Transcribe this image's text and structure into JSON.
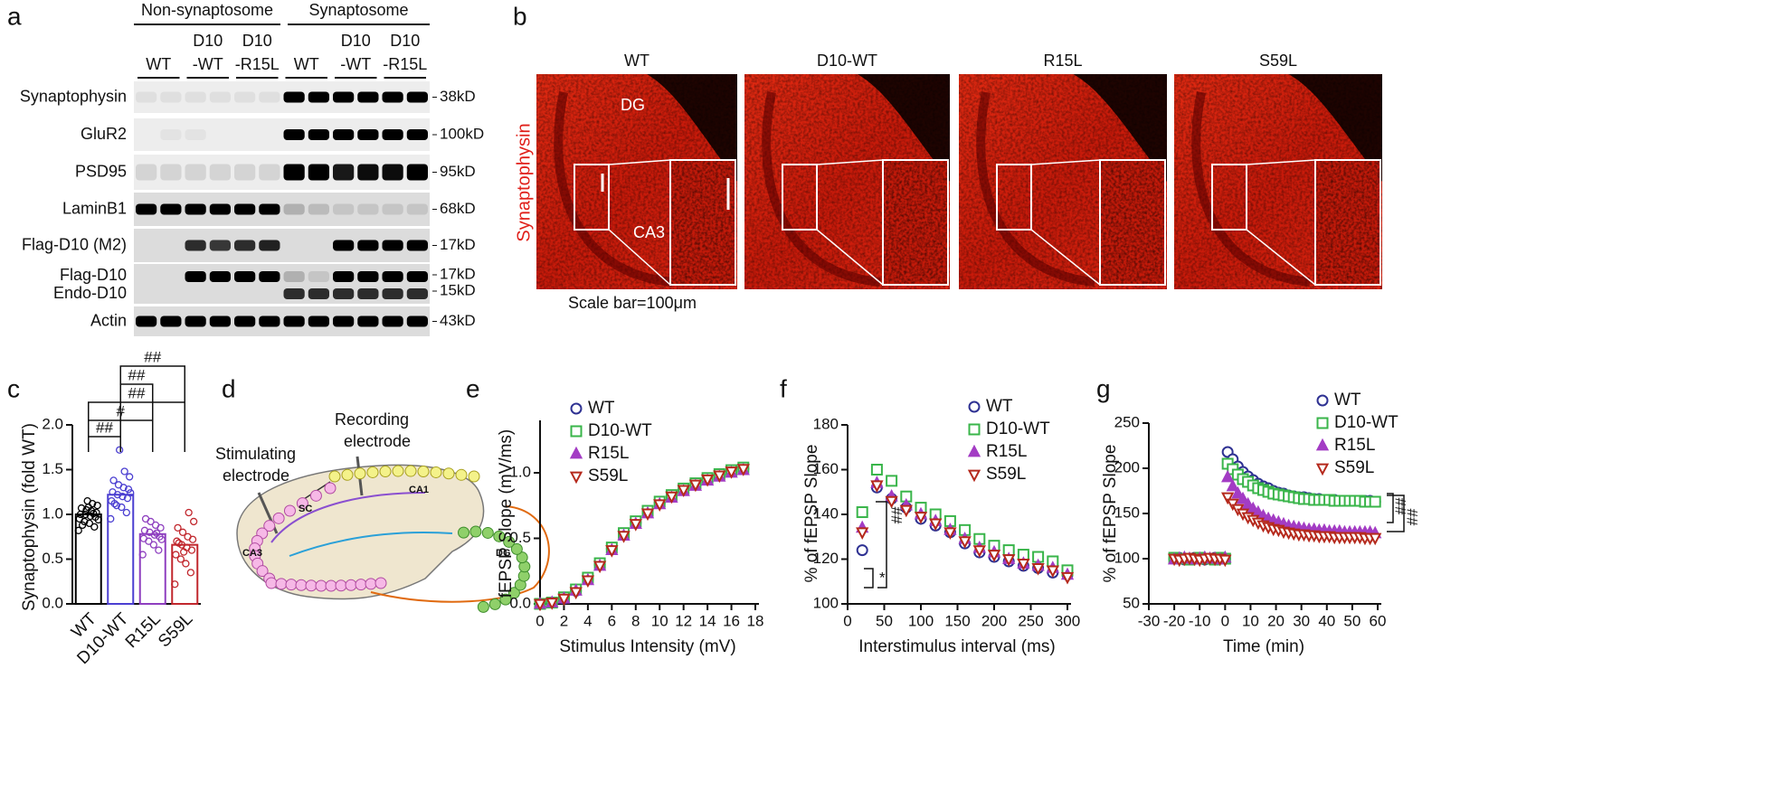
{
  "panel_labels": [
    "a",
    "b",
    "c",
    "d",
    "e",
    "f",
    "g"
  ],
  "blot": {
    "groups": [
      "Non-synaptosome",
      "Synaptosome"
    ],
    "lanes": [
      [
        "WT"
      ],
      [
        "D10",
        "-WT"
      ],
      [
        "D10",
        "-R15L"
      ],
      [
        "WT"
      ],
      [
        "D10",
        "-WT"
      ],
      [
        "D10",
        "-R15L"
      ]
    ],
    "rows": [
      {
        "labels": [
          "Synaptophysin"
        ],
        "sizes": [
          "38kD"
        ]
      },
      {
        "labels": [
          "GluR2"
        ],
        "sizes": [
          "100kD"
        ]
      },
      {
        "labels": [
          "PSD95"
        ],
        "sizes": [
          "95kD"
        ]
      },
      {
        "labels": [
          "LaminB1"
        ],
        "sizes": [
          "68kD"
        ]
      },
      {
        "labels": [
          "Flag-D10 (M2)"
        ],
        "sizes": [
          "17kD"
        ]
      },
      {
        "labels": [
          "Flag-D10",
          "Endo-D10"
        ],
        "sizes": [
          "17kD",
          "15kD"
        ]
      },
      {
        "labels": [
          "Actin"
        ],
        "sizes": [
          "43kD"
        ]
      }
    ]
  },
  "microscopy": {
    "stain": "Synaptophysin",
    "images": [
      "WT",
      "D10-WT",
      "R15L",
      "S59L"
    ],
    "regions": [
      "DG",
      "CA3"
    ],
    "scale": "Scale bar=100μm"
  },
  "diagram": {
    "stimulating": [
      "Stimulating",
      "electrode"
    ],
    "recording": [
      "Recording",
      "electrode"
    ],
    "regions": [
      "CA3",
      "SC",
      "CA1",
      "DG"
    ]
  },
  "chart_data": [
    {
      "type": "bar",
      "ylabel": "Synaptophysin (fold WT)",
      "categories": [
        "WT",
        "D10-WT",
        "R15L",
        "S59L"
      ],
      "values": [
        1.0,
        1.22,
        0.78,
        0.66
      ],
      "colors": [
        "#000000",
        "#4b3fd1",
        "#8e3fbf",
        "#c1272d"
      ],
      "points": [
        [
          0.82,
          0.86,
          0.9,
          0.92,
          0.95,
          0.97,
          0.98,
          1.0,
          1.0,
          1.02,
          1.04,
          1.05,
          1.07,
          1.1,
          1.12,
          1.15,
          0.88,
          0.94,
          1.01,
          1.08
        ],
        [
          0.95,
          1.02,
          1.08,
          1.1,
          1.15,
          1.18,
          1.2,
          1.22,
          1.25,
          1.28,
          1.3,
          1.33,
          1.38,
          1.42,
          1.48,
          1.72,
          1.12,
          1.24
        ],
        [
          0.55,
          0.6,
          0.66,
          0.7,
          0.73,
          0.75,
          0.77,
          0.8,
          0.82,
          0.85,
          0.88,
          0.92,
          0.95,
          0.72,
          0.79
        ],
        [
          0.22,
          0.35,
          0.45,
          0.5,
          0.55,
          0.6,
          0.63,
          0.66,
          0.7,
          0.72,
          0.75,
          0.8,
          0.85,
          0.92,
          1.02,
          0.58,
          0.68
        ]
      ],
      "ylim": [
        0,
        2
      ],
      "yticks": [
        {
          "value": 0,
          "label": "0.0"
        },
        {
          "value": 0.5,
          "label": "0.5"
        },
        {
          "value": 1,
          "label": "1.0"
        },
        {
          "value": 1.5,
          "label": "1.5"
        },
        {
          "value": 2,
          "label": "2.0"
        }
      ],
      "annotations": [
        "##",
        "##",
        "##",
        "#",
        "##"
      ]
    },
    {
      "type": "scatter",
      "xlabel": "Stimulus Intensity (mV)",
      "ylabel": "fEPSP Slope (mV/ms)",
      "x": [
        0,
        1,
        2,
        3,
        4,
        5,
        6,
        7,
        8,
        9,
        10,
        11,
        12,
        13,
        14,
        15,
        16,
        17
      ],
      "series": [
        {
          "name": "WT",
          "color": "#2e3192",
          "marker": "circle",
          "values": [
            0,
            0.01,
            0.04,
            0.1,
            0.19,
            0.3,
            0.42,
            0.53,
            0.62,
            0.7,
            0.77,
            0.82,
            0.87,
            0.91,
            0.95,
            0.98,
            1.01,
            1.03
          ]
        },
        {
          "name": "D10-WT",
          "color": "#39b54a",
          "marker": "square",
          "values": [
            0,
            0.01,
            0.05,
            0.11,
            0.2,
            0.31,
            0.43,
            0.54,
            0.63,
            0.71,
            0.78,
            0.83,
            0.88,
            0.92,
            0.96,
            0.99,
            1.02,
            1.04
          ]
        },
        {
          "name": "R15L",
          "color": "#a33cc4",
          "marker": "triangle-filled",
          "values": [
            0,
            0.01,
            0.04,
            0.1,
            0.18,
            0.29,
            0.41,
            0.52,
            0.61,
            0.69,
            0.76,
            0.81,
            0.86,
            0.9,
            0.94,
            0.97,
            1.0,
            1.02
          ]
        },
        {
          "name": "S59L",
          "color": "#b5291c",
          "marker": "triangle-down",
          "values": [
            0,
            0.01,
            0.04,
            0.09,
            0.18,
            0.29,
            0.41,
            0.52,
            0.61,
            0.69,
            0.76,
            0.82,
            0.87,
            0.91,
            0.95,
            0.98,
            1.01,
            1.03
          ]
        }
      ],
      "xlim": [
        0,
        18
      ],
      "ylim": [
        0,
        1.4
      ],
      "xticks": [
        0,
        2,
        4,
        6,
        8,
        10,
        12,
        14,
        16,
        18
      ],
      "yticks": [
        {
          "value": 0,
          "label": "0.0"
        },
        {
          "value": 0.5,
          "label": "0.5"
        },
        {
          "value": 1,
          "label": "1.0"
        }
      ]
    },
    {
      "type": "scatter",
      "xlabel": "Interstimulus interval (ms)",
      "ylabel": "% of fEPSP Slope",
      "x": [
        20,
        40,
        60,
        80,
        100,
        120,
        140,
        160,
        180,
        200,
        220,
        240,
        260,
        280,
        300
      ],
      "series": [
        {
          "name": "WT",
          "color": "#2e3192",
          "marker": "circle",
          "values": [
            124,
            152,
            147,
            143,
            138,
            135,
            132,
            127,
            123,
            121,
            119,
            117,
            116,
            114,
            113
          ]
        },
        {
          "name": "D10-WT",
          "color": "#39b54a",
          "marker": "square",
          "values": [
            141,
            160,
            155,
            148,
            143,
            140,
            137,
            133,
            129,
            126,
            124,
            122,
            121,
            119,
            115
          ]
        },
        {
          "name": "R15L",
          "color": "#a33cc4",
          "marker": "triangle-filled",
          "values": [
            134,
            154,
            148,
            144,
            140,
            137,
            133,
            129,
            125,
            123,
            120,
            118,
            117,
            116,
            113
          ]
        },
        {
          "name": "S59L",
          "color": "#b5291c",
          "marker": "triangle-down",
          "values": [
            132,
            153,
            146,
            142,
            139,
            136,
            132,
            128,
            124,
            122,
            120,
            118,
            116,
            115,
            112
          ]
        }
      ],
      "xlim": [
        0,
        300
      ],
      "ylim": [
        100,
        180
      ],
      "xticks": [
        0,
        50,
        100,
        150,
        200,
        250,
        300
      ],
      "yticks": [
        100,
        120,
        140,
        160,
        180
      ],
      "annotations": [
        "*",
        "##"
      ]
    },
    {
      "type": "scatter",
      "xlabel": "Time (min)",
      "ylabel": "% of fEPSP Slope",
      "x": [
        -20,
        -18,
        -16,
        -14,
        -12,
        -10,
        -8,
        -6,
        -4,
        -2,
        0,
        1,
        3,
        5,
        7,
        9,
        11,
        13,
        15,
        17,
        19,
        21,
        23,
        25,
        27,
        29,
        31,
        33,
        35,
        37,
        39,
        41,
        43,
        45,
        47,
        49,
        51,
        53,
        55,
        57,
        59
      ],
      "series": [
        {
          "name": "WT",
          "color": "#2e3192",
          "marker": "circle",
          "values": [
            100,
            101,
            99,
            100,
            101,
            100,
            99,
            100,
            101,
            100,
            100,
            218,
            210,
            202,
            196,
            191,
            187,
            183,
            180,
            178,
            175,
            173,
            172,
            170,
            169,
            168,
            168,
            167,
            166,
            166,
            165,
            165,
            165,
            164,
            164,
            164,
            164,
            164,
            164,
            164,
            163
          ]
        },
        {
          "name": "D10-WT",
          "color": "#39b54a",
          "marker": "square",
          "values": [
            101,
            100,
            100,
            99,
            100,
            101,
            100,
            100,
            99,
            101,
            100,
            205,
            199,
            193,
            188,
            185,
            181,
            178,
            176,
            174,
            172,
            171,
            170,
            169,
            168,
            167,
            166,
            166,
            165,
            165,
            165,
            165,
            164,
            164,
            164,
            164,
            164,
            164,
            163,
            163,
            163
          ]
        },
        {
          "name": "R15L",
          "color": "#a33cc4",
          "marker": "triangle-filled",
          "values": [
            99,
            100,
            101,
            100,
            99,
            100,
            101,
            100,
            100,
            99,
            101,
            190,
            180,
            172,
            166,
            160,
            155,
            151,
            147,
            144,
            142,
            140,
            138,
            136,
            135,
            134,
            133,
            132,
            132,
            131,
            131,
            130,
            130,
            130,
            129,
            129,
            129,
            129,
            129,
            129,
            128
          ]
        },
        {
          "name": "S59L",
          "color": "#b5291c",
          "marker": "triangle-down",
          "values": [
            100,
            99,
            100,
            101,
            100,
            99,
            100,
            101,
            100,
            100,
            99,
            168,
            161,
            155,
            150,
            146,
            143,
            140,
            137,
            135,
            133,
            132,
            130,
            129,
            128,
            127,
            127,
            126,
            126,
            125,
            125,
            125,
            124,
            124,
            124,
            124,
            124,
            124,
            123,
            123,
            123
          ]
        }
      ],
      "xlim": [
        -30,
        60
      ],
      "ylim": [
        50,
        250
      ],
      "xticks": [
        -30,
        -20,
        -10,
        0,
        10,
        20,
        30,
        40,
        50,
        60
      ],
      "yticks": [
        50,
        100,
        150,
        200,
        250
      ],
      "annotations": [
        "##",
        "##"
      ]
    }
  ]
}
